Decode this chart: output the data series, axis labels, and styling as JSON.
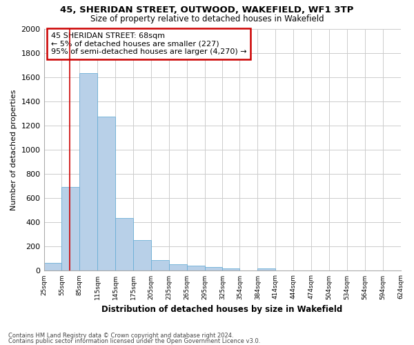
{
  "title1": "45, SHERIDAN STREET, OUTWOOD, WAKEFIELD, WF1 3TP",
  "title2": "Size of property relative to detached houses in Wakefield",
  "xlabel": "Distribution of detached houses by size in Wakefield",
  "ylabel": "Number of detached properties",
  "bar_values": [
    65,
    690,
    1630,
    1275,
    435,
    255,
    90,
    55,
    40,
    30,
    20,
    0,
    20,
    0,
    0,
    0,
    0,
    0,
    0,
    0
  ],
  "bin_edges": [
    25,
    55,
    85,
    115,
    145,
    175,
    205,
    235,
    265,
    295,
    325,
    354,
    384,
    414,
    444,
    474,
    504,
    534,
    564,
    594,
    624
  ],
  "tick_labels": [
    "25sqm",
    "55sqm",
    "85sqm",
    "115sqm",
    "145sqm",
    "175sqm",
    "205sqm",
    "235sqm",
    "265sqm",
    "295sqm",
    "325sqm",
    "354sqm",
    "384sqm",
    "414sqm",
    "444sqm",
    "474sqm",
    "504sqm",
    "534sqm",
    "564sqm",
    "594sqm",
    "624sqm"
  ],
  "bar_color": "#b8d0e8",
  "bar_edge_color": "#6aaed6",
  "annotation_text": "45 SHERIDAN STREET: 68sqm\n← 5% of detached houses are smaller (227)\n95% of semi-detached houses are larger (4,270) →",
  "vline_pos": 68,
  "annotation_box_color": "#ffffff",
  "annotation_border_color": "#cc0000",
  "ylim": [
    0,
    2000
  ],
  "yticks": [
    0,
    200,
    400,
    600,
    800,
    1000,
    1200,
    1400,
    1600,
    1800,
    2000
  ],
  "footer1": "Contains HM Land Registry data © Crown copyright and database right 2024.",
  "footer2": "Contains public sector information licensed under the Open Government Licence v3.0.",
  "bg_color": "#ffffff",
  "grid_color": "#cccccc"
}
